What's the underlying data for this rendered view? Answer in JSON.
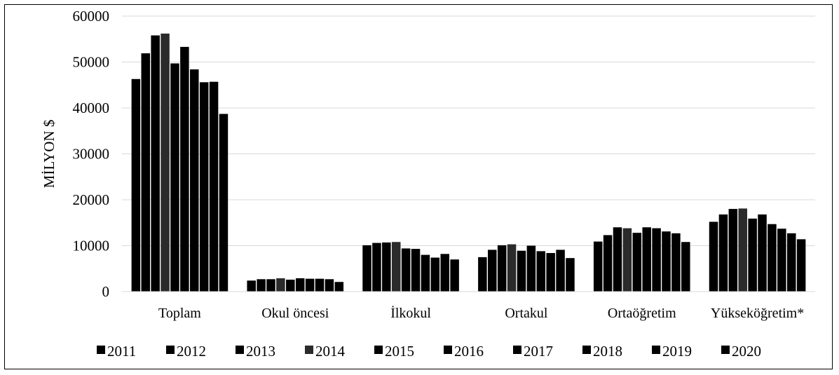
{
  "chart_data": {
    "type": "bar",
    "title": "",
    "xlabel": "",
    "ylabel": "MİLYON $",
    "ylim": [
      0,
      60000
    ],
    "yticks": [
      0,
      10000,
      20000,
      30000,
      40000,
      50000,
      60000
    ],
    "grid": true,
    "legend_position": "bottom",
    "categories": [
      "Toplam",
      "Okul öncesi",
      "İlkokul",
      "Ortakul",
      "Ortaöğretim",
      "Yükseköğretim*"
    ],
    "series": [
      {
        "name": "2011",
        "color": "#000000",
        "values": [
          46300,
          2400,
          10100,
          7500,
          10900,
          15200
        ]
      },
      {
        "name": "2012",
        "color": "#000000",
        "values": [
          51900,
          2700,
          10600,
          9100,
          12300,
          16800
        ]
      },
      {
        "name": "2013",
        "color": "#000000",
        "values": [
          55800,
          2700,
          10700,
          10100,
          14000,
          18000
        ]
      },
      {
        "name": "2014",
        "color": "#2b2b2b",
        "values": [
          56200,
          2900,
          10800,
          10300,
          13800,
          18100
        ]
      },
      {
        "name": "2015",
        "color": "#000000",
        "values": [
          49700,
          2600,
          9400,
          8900,
          12800,
          15900
        ]
      },
      {
        "name": "2016",
        "color": "#000000",
        "values": [
          53300,
          2900,
          9300,
          10000,
          14000,
          16800
        ]
      },
      {
        "name": "2017",
        "color": "#000000",
        "values": [
          48400,
          2800,
          8000,
          8800,
          13800,
          14700
        ]
      },
      {
        "name": "2018",
        "color": "#000000",
        "values": [
          45600,
          2800,
          7400,
          8400,
          13100,
          13700
        ]
      },
      {
        "name": "2019",
        "color": "#000000",
        "values": [
          45700,
          2700,
          8200,
          9100,
          12700,
          12700
        ]
      },
      {
        "name": "2020",
        "color": "#000000",
        "values": [
          38700,
          2100,
          7000,
          7300,
          10800,
          11400
        ]
      }
    ]
  }
}
